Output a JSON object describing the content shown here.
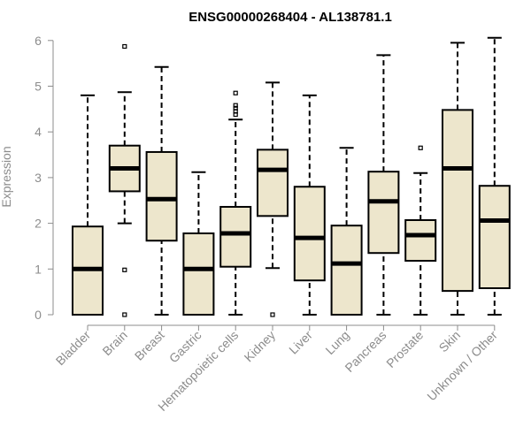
{
  "chart_data": {
    "type": "boxplot",
    "title": "ENSG00000268404 - AL138781.1",
    "xlabel": "",
    "ylabel": "Expression",
    "ylim": [
      0,
      6.1
    ],
    "yticks": [
      0,
      1,
      2,
      3,
      4,
      5,
      6
    ],
    "grid": false,
    "box_color": "#ede6cc",
    "categories": [
      "Bladder",
      "Brain",
      "Breast",
      "Gastric",
      "Hematopoietic cells",
      "Kidney",
      "Liver",
      "Lung",
      "Pancreas",
      "Prostate",
      "Skin",
      "Unknown / Other"
    ],
    "boxes": [
      {
        "name": "Bladder",
        "min": 0,
        "q1": 0,
        "median": 1.0,
        "q3": 1.93,
        "max": 4.8,
        "outliers": []
      },
      {
        "name": "Brain",
        "min": 2.0,
        "q1": 2.7,
        "median": 3.2,
        "q3": 3.7,
        "max": 4.87,
        "outliers": [
          5.87,
          0.98,
          0.0
        ]
      },
      {
        "name": "Breast",
        "min": 0,
        "q1": 1.62,
        "median": 2.53,
        "q3": 3.56,
        "max": 5.42,
        "outliers": []
      },
      {
        "name": "Gastric",
        "min": 0,
        "q1": 0,
        "median": 1.0,
        "q3": 1.78,
        "max": 3.12,
        "outliers": []
      },
      {
        "name": "Hematopoietic cells",
        "min": 0,
        "q1": 1.05,
        "median": 1.78,
        "q3": 2.36,
        "max": 4.27,
        "outliers": [
          4.38,
          4.45,
          4.52,
          4.58,
          4.85
        ]
      },
      {
        "name": "Kidney",
        "min": 1.02,
        "q1": 2.16,
        "median": 3.17,
        "q3": 3.61,
        "max": 5.08,
        "outliers": [
          0.0
        ]
      },
      {
        "name": "Liver",
        "min": 0,
        "q1": 0.75,
        "median": 1.68,
        "q3": 2.8,
        "max": 4.8,
        "outliers": []
      },
      {
        "name": "Lung",
        "min": 0,
        "q1": 0,
        "median": 1.12,
        "q3": 1.95,
        "max": 3.65,
        "outliers": []
      },
      {
        "name": "Pancreas",
        "min": 0,
        "q1": 1.35,
        "median": 2.48,
        "q3": 3.13,
        "max": 5.68,
        "outliers": []
      },
      {
        "name": "Prostate",
        "min": 0,
        "q1": 1.18,
        "median": 1.74,
        "q3": 2.07,
        "max": 3.1,
        "outliers": [
          3.65
        ]
      },
      {
        "name": "Skin",
        "min": 0,
        "q1": 0.52,
        "median": 3.2,
        "q3": 4.48,
        "max": 5.95,
        "outliers": []
      },
      {
        "name": "Unknown / Other",
        "min": 0,
        "q1": 0.58,
        "median": 2.06,
        "q3": 2.82,
        "max": 6.06,
        "outliers": []
      }
    ]
  }
}
